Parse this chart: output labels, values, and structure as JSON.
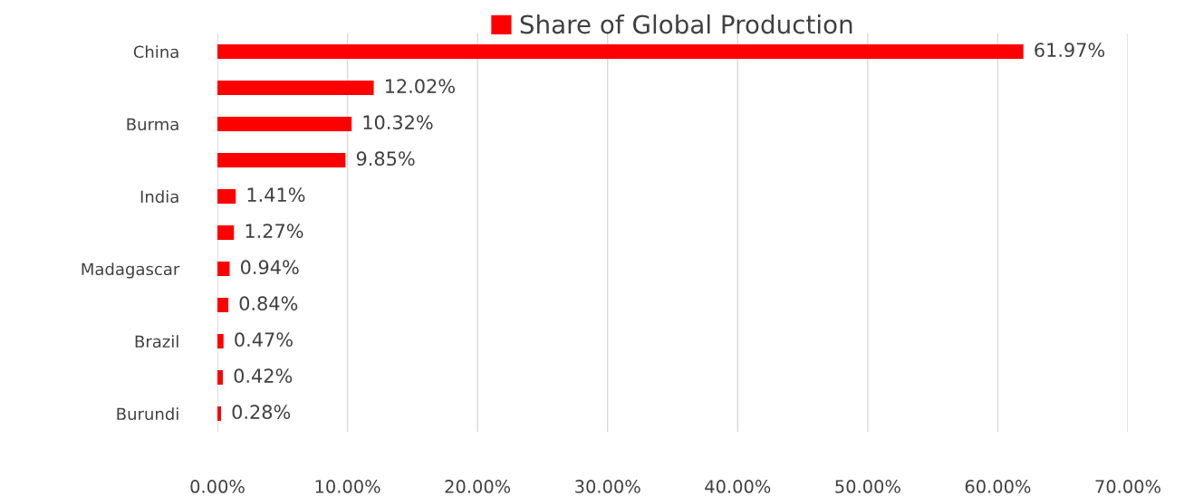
{
  "chart_data": {
    "type": "bar",
    "orientation": "horizontal",
    "categories": [
      "China",
      null,
      "Burma",
      null,
      "India",
      null,
      "Madagascar",
      null,
      "Brazil",
      null,
      "Burundi"
    ],
    "series": [
      {
        "name": "Share of Global Production",
        "color": "#ff0000",
        "values": [
          61.97,
          12.02,
          10.32,
          9.85,
          1.41,
          1.27,
          0.94,
          0.84,
          0.47,
          0.42,
          0.28
        ],
        "value_labels": [
          "61.97%",
          "12.02%",
          "10.32%",
          "9.85%",
          "1.41%",
          "1.27%",
          "0.94%",
          "0.84%",
          "0.47%",
          "0.42%",
          "0.28%"
        ]
      }
    ],
    "xlim": [
      0,
      70
    ],
    "xticks": [
      {
        "value": 0,
        "label": "0.00%"
      },
      {
        "value": 10,
        "label": "10.00%"
      },
      {
        "value": 20,
        "label": "20.00%"
      },
      {
        "value": 30,
        "label": "30.00%"
      },
      {
        "value": 40,
        "label": "40.00%"
      },
      {
        "value": 50,
        "label": "50.00%"
      },
      {
        "value": 60,
        "label": "60.00%"
      },
      {
        "value": 70,
        "label": "70.00%"
      }
    ],
    "grid": "x",
    "legend": "top"
  }
}
